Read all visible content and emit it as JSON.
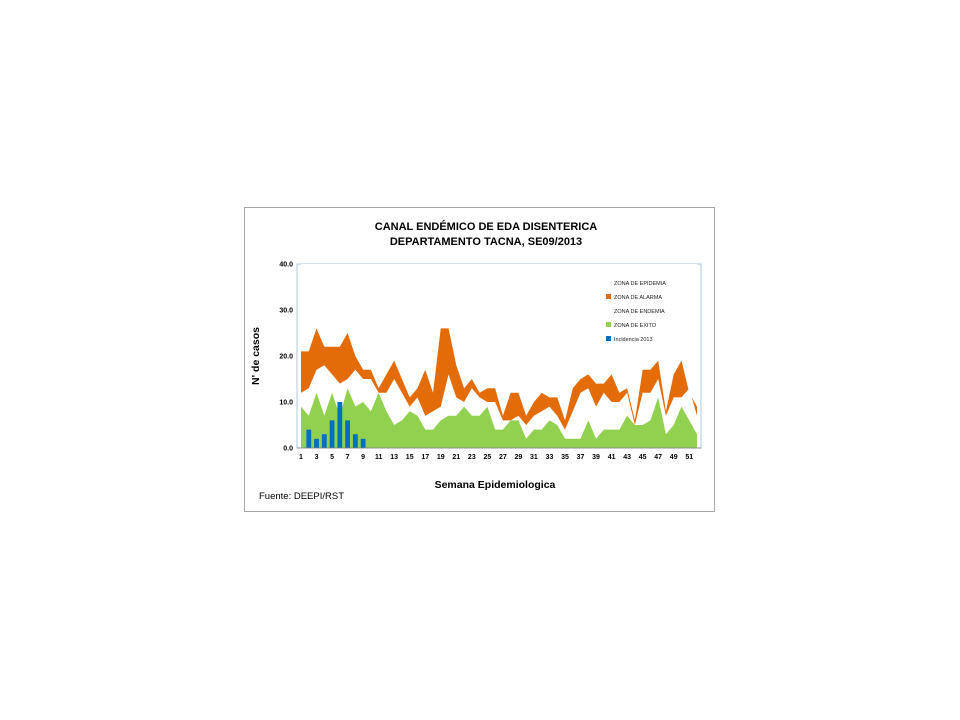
{
  "chart_data": {
    "type": "area",
    "title_line1": "CANAL ENDÉMICO DE EDA DISENTERICA",
    "title_line2": "DEPARTAMENTO TACNA,  SE09/2013",
    "ylabel": "N' de casos",
    "xlabel": "Semana Epidemiologica",
    "source": "Fuente:  DEEPI/RST",
    "ylim": [
      0,
      40
    ],
    "yticks": [
      "0.0",
      "10.0",
      "20.0",
      "30.0",
      "40.0"
    ],
    "x_tick_labels": [
      "1",
      "3",
      "5",
      "7",
      "9",
      "11",
      "13",
      "15",
      "17",
      "19",
      "21",
      "23",
      "25",
      "27",
      "29",
      "31",
      "33",
      "35",
      "37",
      "39",
      "41",
      "43",
      "45",
      "47",
      "49",
      "51"
    ],
    "weeks": [
      1,
      2,
      3,
      4,
      5,
      6,
      7,
      8,
      9,
      10,
      11,
      12,
      13,
      14,
      15,
      16,
      17,
      18,
      19,
      20,
      21,
      22,
      23,
      24,
      25,
      26,
      27,
      28,
      29,
      30,
      31,
      32,
      33,
      34,
      35,
      36,
      37,
      38,
      39,
      40,
      41,
      42,
      43,
      44,
      45,
      46,
      47,
      48,
      49,
      50,
      51,
      52
    ],
    "legend_position": "top-right",
    "series": [
      {
        "name": "ZONA DE EPIDEMIA",
        "color": "#ffffff",
        "values": [
          40,
          40,
          40,
          40,
          40,
          40,
          40,
          40,
          40,
          40,
          40,
          40,
          40,
          40,
          40,
          40,
          40,
          40,
          40,
          40,
          40,
          40,
          40,
          40,
          40,
          40,
          40,
          40,
          40,
          40,
          40,
          40,
          40,
          40,
          40,
          40,
          40,
          40,
          40,
          40,
          40,
          40,
          40,
          40,
          40,
          40,
          40,
          40,
          40,
          40,
          40,
          40
        ]
      },
      {
        "name": "ZONA DE ALARMA",
        "color": "#e36c09",
        "values": [
          21,
          21,
          26,
          22,
          22,
          22,
          25,
          20,
          17,
          17,
          13,
          16,
          19,
          15,
          11,
          13,
          17,
          12,
          26,
          26,
          18,
          13,
          15,
          12,
          13,
          13,
          7,
          12,
          12,
          7,
          10,
          12,
          11,
          11,
          6,
          13,
          15,
          16,
          14,
          14,
          16,
          12,
          13,
          6,
          17,
          17,
          19,
          8,
          16,
          19,
          12,
          9
        ]
      },
      {
        "name": "ZONA DE ENDEMIA",
        "color": "#ffffff",
        "values": [
          12,
          13,
          17,
          18,
          16,
          14,
          15,
          17,
          15,
          15,
          12,
          12,
          15,
          12,
          9,
          11,
          7,
          8,
          9,
          16,
          11,
          10,
          13,
          11,
          10,
          10,
          6,
          6,
          7,
          5,
          7,
          8,
          9,
          7,
          4,
          8,
          12,
          13,
          9,
          12,
          10,
          10,
          12,
          5,
          12,
          12,
          15,
          7,
          11,
          11,
          13,
          7
        ]
      },
      {
        "name": "ZONA DE EXITO",
        "color": "#92d050",
        "values": [
          9,
          7,
          12,
          7,
          12,
          7,
          13,
          9,
          10,
          8,
          12,
          8,
          5,
          6,
          8,
          7,
          4,
          4,
          6,
          7,
          7,
          9,
          7,
          7,
          9,
          4,
          4,
          6,
          6,
          2,
          4,
          4,
          6,
          5,
          2,
          2,
          2,
          6,
          2,
          4,
          4,
          4,
          7,
          5,
          5,
          6,
          11,
          3,
          5,
          9,
          6,
          3
        ]
      },
      {
        "name": "Incidencia 2013",
        "color": "#0070c0",
        "type": "bar",
        "values": [
          0,
          4,
          2,
          3,
          6,
          10,
          6,
          3,
          2
        ]
      }
    ]
  }
}
